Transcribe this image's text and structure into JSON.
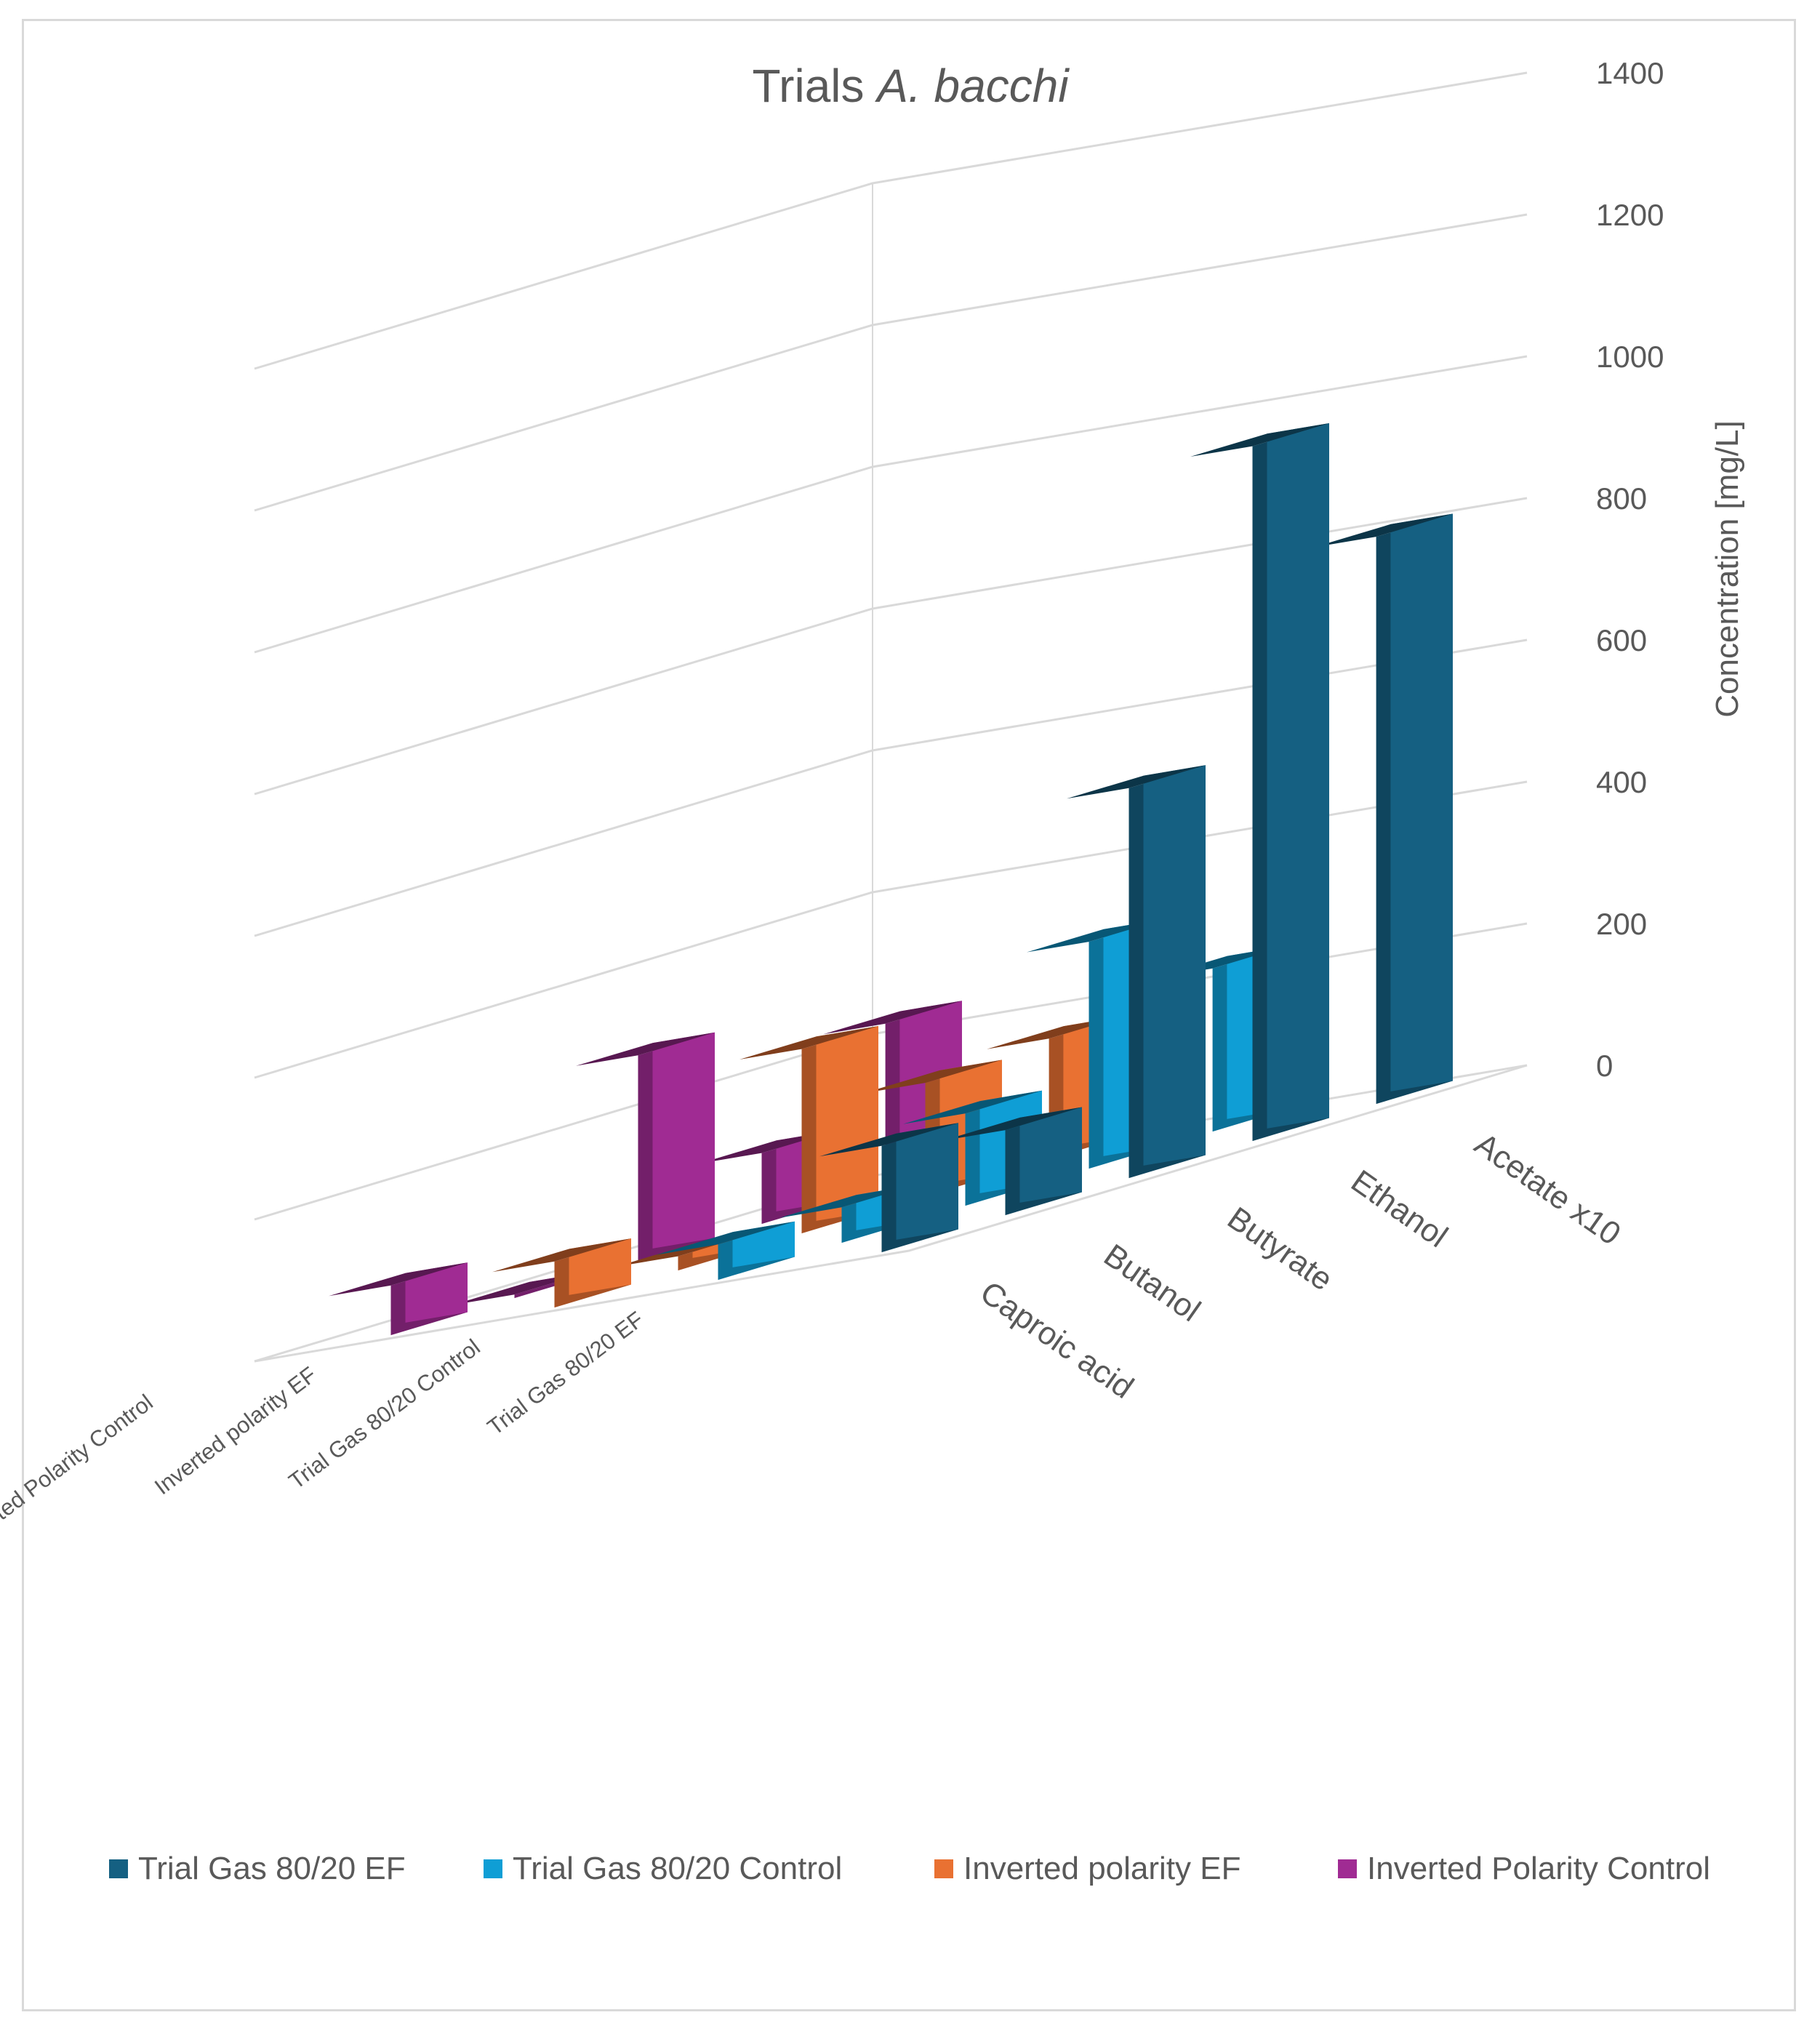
{
  "chart_data": {
    "type": "bar",
    "title_plain": "Trials ",
    "title_italic": "A. bacchi",
    "zlabel": "Concentration [mg/L]",
    "zlim": [
      0,
      1400
    ],
    "zticks": [
      "0",
      "200",
      "400",
      "600",
      "800",
      "1000",
      "1200",
      "1400"
    ],
    "categories": [
      "Caproic acid",
      "Butanol",
      "Butyrate",
      "Ethanol",
      "Acetate x10"
    ],
    "series": [
      {
        "name": "Trial Gas 80/20 EF",
        "color": "#156082",
        "values": [
          150,
          120,
          550,
          980,
          800
        ]
      },
      {
        "name": "Trial Gas 80/20 Control",
        "color": "#0f9ed5",
        "values": [
          50,
          50,
          130,
          320,
          230
        ]
      },
      {
        "name": "Inverted polarity EF",
        "color": "#e97132",
        "values": [
          65,
          20,
          260,
          160,
          170
        ]
      },
      {
        "name": "Inverted Polarity Control",
        "color": "#a02b93",
        "values": [
          70,
          5,
          290,
          100,
          230
        ]
      }
    ]
  }
}
